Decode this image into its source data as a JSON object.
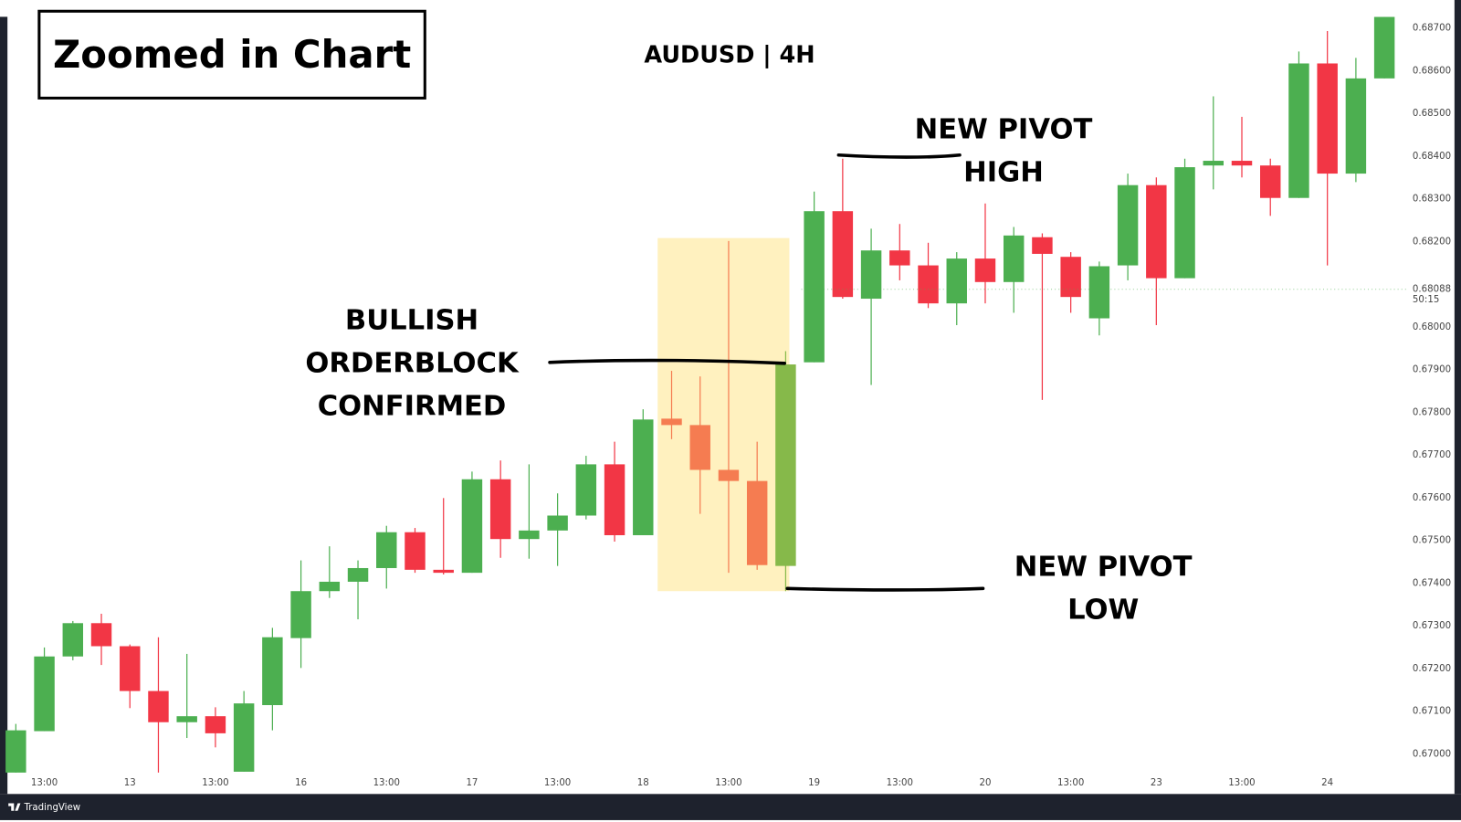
{
  "header": {
    "label": "Zoomed in Chart"
  },
  "footer": {
    "brand": "TradingView"
  },
  "chart_data": {
    "type": "candlestick",
    "title": "AUDUSD | 4H",
    "categories": [
      null,
      "13:00",
      null,
      null,
      "13",
      null,
      null,
      "13:00",
      null,
      null,
      "16",
      null,
      null,
      "13:00",
      null,
      null,
      "17",
      null,
      null,
      "13:00",
      null,
      null,
      "18",
      null,
      null,
      "13:00",
      null,
      null,
      "19",
      null,
      null,
      "13:00",
      null,
      null,
      "20",
      null,
      null,
      "13:00",
      null,
      null,
      "23",
      null,
      null,
      "13:00",
      null,
      null,
      "24",
      null,
      null
    ],
    "open": [
      0.66956,
      0.67053,
      0.67228,
      0.67306,
      0.67252,
      0.67147,
      0.67074,
      0.67088,
      0.66958,
      0.67114,
      0.67271,
      0.67381,
      0.67403,
      0.67435,
      0.67519,
      0.67431,
      0.67424,
      0.67643,
      0.67503,
      0.67523,
      0.67558,
      0.67678,
      0.67512,
      0.67785,
      0.6777,
      0.67665,
      0.67639,
      0.6744,
      0.67917,
      0.68271,
      0.68066,
      0.68179,
      0.68144,
      0.68055,
      0.6816,
      0.68105,
      0.6821,
      0.68164,
      0.6802,
      0.68144,
      0.68332,
      0.68114,
      0.68378,
      0.68389,
      0.68378,
      0.68302,
      0.68617,
      0.68359,
      0.68582
    ],
    "high": [
      0.6707,
      0.67249,
      0.67311,
      0.67328,
      0.67256,
      0.67273,
      0.67234,
      0.67109,
      0.67147,
      0.67295,
      0.67453,
      0.67486,
      0.67453,
      0.67534,
      0.67529,
      0.67599,
      0.67661,
      0.67687,
      0.67678,
      0.6761,
      0.67698,
      0.67731,
      0.67807,
      0.67897,
      0.67884,
      0.68201,
      0.67731,
      0.67943,
      0.68317,
      0.68394,
      0.6823,
      0.68241,
      0.68197,
      0.68175,
      0.68289,
      0.68234,
      0.68219,
      0.68175,
      0.68153,
      0.68359,
      0.6835,
      0.68394,
      0.6854,
      0.68492,
      0.68394,
      0.68645,
      0.68693,
      0.6863,
      0.68726
    ],
    "low": [
      0.66956,
      0.67053,
      0.67219,
      0.67208,
      0.67107,
      0.66956,
      0.67037,
      0.67015,
      0.66958,
      0.67055,
      0.67201,
      0.67365,
      0.67315,
      0.67387,
      0.67424,
      0.6742,
      0.67424,
      0.67459,
      0.67457,
      0.6744,
      0.67549,
      0.67497,
      0.67512,
      0.67737,
      0.67562,
      0.67424,
      0.67431,
      0.67381,
      0.67917,
      0.68066,
      0.67864,
      0.68109,
      0.68044,
      0.68004,
      0.68055,
      0.68033,
      0.67829,
      0.68033,
      0.6798,
      0.68109,
      0.68004,
      0.68114,
      0.68322,
      0.6835,
      0.6826,
      0.68302,
      0.68144,
      0.68339,
      0.68582
    ],
    "close": [
      0.67055,
      0.67228,
      0.67306,
      0.67252,
      0.67147,
      0.67074,
      0.67088,
      0.67048,
      0.67118,
      0.67273,
      0.67381,
      0.67403,
      0.67435,
      0.67519,
      0.67431,
      0.67424,
      0.67643,
      0.67503,
      0.67523,
      0.67558,
      0.67678,
      0.67512,
      0.67783,
      0.6777,
      0.67665,
      0.67639,
      0.67442,
      0.67912,
      0.68271,
      0.6807,
      0.68179,
      0.68144,
      0.68055,
      0.6816,
      0.68105,
      0.68214,
      0.68171,
      0.6807,
      0.68142,
      0.68332,
      0.68114,
      0.68374,
      0.68389,
      0.68378,
      0.68302,
      0.68617,
      0.68359,
      0.68582,
      0.68726
    ],
    "up_color": "#4caf50",
    "down_color": "#f23645",
    "highlight": {
      "candles": [
        23,
        27
      ],
      "up_color": "#86b94a",
      "down_color": "#f57c51",
      "zone_color": "#fff1bf",
      "zone_ylim": [
        0.67381,
        0.68208
      ]
    },
    "ylim": [
      0.66954,
      0.68735
    ],
    "yticks": [
      {
        "value": 0.67,
        "label": "0.67000"
      },
      {
        "value": 0.671,
        "label": "0.67100"
      },
      {
        "value": 0.672,
        "label": "0.67200"
      },
      {
        "value": 0.673,
        "label": "0.67300"
      },
      {
        "value": 0.674,
        "label": "0.67400"
      },
      {
        "value": 0.675,
        "label": "0.67500"
      },
      {
        "value": 0.676,
        "label": "0.67600"
      },
      {
        "value": 0.677,
        "label": "0.67700"
      },
      {
        "value": 0.678,
        "label": "0.67800"
      },
      {
        "value": 0.679,
        "label": "0.67900"
      },
      {
        "value": 0.68,
        "label": "0.68000"
      },
      {
        "value": 0.682,
        "label": "0.68200"
      },
      {
        "value": 0.683,
        "label": "0.68300"
      },
      {
        "value": 0.684,
        "label": "0.68400"
      },
      {
        "value": 0.685,
        "label": "0.68500"
      },
      {
        "value": 0.686,
        "label": "0.68600"
      },
      {
        "value": 0.687,
        "label": "0.68700"
      }
    ],
    "price_marker": {
      "value": 0.68088,
      "label": "0.68088",
      "countdown": "50:15"
    },
    "annotations": [
      {
        "lines": [
          "BULLISH",
          "ORDERBLOCK",
          "CONFIRMED"
        ]
      },
      {
        "lines": [
          "NEW PIVOT",
          "HIGH"
        ]
      },
      {
        "lines": [
          "NEW PIVOT",
          "LOW"
        ]
      }
    ]
  }
}
